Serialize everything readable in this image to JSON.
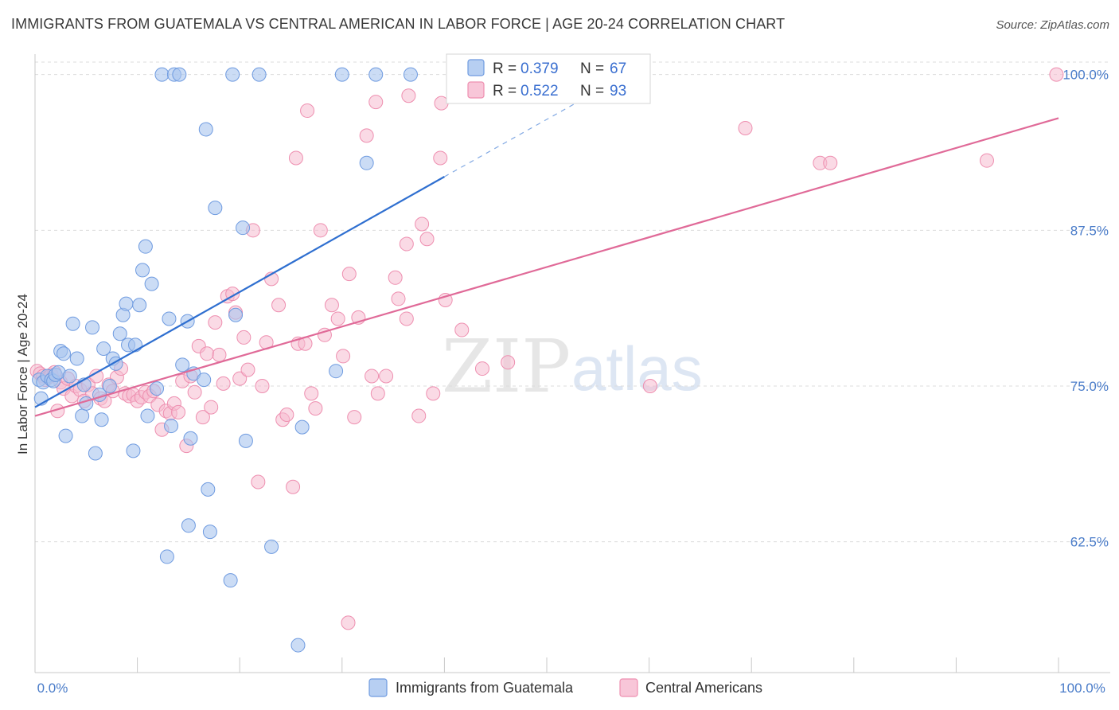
{
  "title": "IMMIGRANTS FROM GUATEMALA VS CENTRAL AMERICAN IN LABOR FORCE | AGE 20-24 CORRELATION CHART",
  "source": "Source: ZipAtlas.com",
  "watermark": {
    "zip": "ZIP",
    "atlas": "atlas"
  },
  "colors": {
    "blue_fill": "#a9c4ee",
    "blue_stroke": "#6f9be0",
    "blue_line": "#2f6fd0",
    "pink_fill": "#f6bcd0",
    "pink_stroke": "#ee8fb0",
    "pink_line": "#e06a98",
    "grid": "#dcdcdc",
    "tick_label": "#4a7cc9"
  },
  "legend": {
    "rows": [
      {
        "r_label": "R =",
        "r_value": "0.379",
        "n_label": "N =",
        "n_value": "67"
      },
      {
        "r_label": "R =",
        "r_value": "0.522",
        "n_label": "N =",
        "n_value": "93"
      }
    ]
  },
  "bottom_legend": [
    "Immigrants from Guatemala",
    "Central Americans"
  ],
  "chart_data": {
    "type": "scatter",
    "title": "IMMIGRANTS FROM GUATEMALA VS CENTRAL AMERICAN IN LABOR FORCE | AGE 20-24 CORRELATION CHART",
    "xlabel": "",
    "ylabel": "In Labor Force | Age 20-24",
    "xlim": [
      0,
      100
    ],
    "ylim": [
      52,
      101
    ],
    "x_tick_labels": [
      "0.0%",
      "100.0%"
    ],
    "y_ticks": [
      62.5,
      75.0,
      87.5,
      100.0
    ],
    "y_tick_labels": [
      "62.5%",
      "75.0%",
      "87.5%",
      "100.0%"
    ],
    "grid": true,
    "legend_position": "top-center",
    "series": [
      {
        "name": "Immigrants from Guatemala",
        "R": 0.379,
        "N": 67,
        "trend": {
          "x0": 0.0,
          "y0": 73.3,
          "x1": 40.0,
          "y1": 91.8,
          "dashed_to_x": 55.0,
          "dashed_to_y": 98.7
        },
        "points": [
          [
            0.4,
            75.5
          ],
          [
            0.6,
            74.0
          ],
          [
            0.8,
            75.3
          ],
          [
            1.2,
            75.8
          ],
          [
            1.6,
            75.5
          ],
          [
            1.8,
            75.4
          ],
          [
            2.0,
            75.9
          ],
          [
            2.3,
            76.1
          ],
          [
            2.5,
            77.8
          ],
          [
            2.8,
            77.6
          ],
          [
            3.0,
            71.0
          ],
          [
            3.4,
            75.8
          ],
          [
            3.7,
            80.0
          ],
          [
            4.1,
            77.2
          ],
          [
            4.6,
            72.6
          ],
          [
            4.8,
            75.1
          ],
          [
            5.0,
            73.6
          ],
          [
            5.6,
            79.7
          ],
          [
            5.9,
            69.6
          ],
          [
            6.3,
            74.3
          ],
          [
            6.5,
            72.3
          ],
          [
            6.7,
            78.0
          ],
          [
            7.3,
            75.0
          ],
          [
            7.6,
            77.2
          ],
          [
            7.9,
            76.8
          ],
          [
            8.3,
            79.2
          ],
          [
            8.6,
            80.7
          ],
          [
            8.9,
            81.6
          ],
          [
            9.1,
            78.3
          ],
          [
            9.6,
            69.8
          ],
          [
            9.8,
            78.3
          ],
          [
            10.2,
            81.5
          ],
          [
            10.5,
            84.3
          ],
          [
            10.8,
            86.2
          ],
          [
            11.0,
            72.6
          ],
          [
            11.4,
            83.2
          ],
          [
            11.9,
            74.8
          ],
          [
            12.4,
            100.0
          ],
          [
            12.9,
            61.3
          ],
          [
            13.1,
            80.4
          ],
          [
            13.3,
            71.8
          ],
          [
            13.6,
            100.0
          ],
          [
            14.1,
            100.0
          ],
          [
            14.4,
            76.7
          ],
          [
            14.9,
            80.2
          ],
          [
            15.0,
            63.8
          ],
          [
            15.2,
            70.8
          ],
          [
            15.5,
            76.0
          ],
          [
            16.5,
            75.5
          ],
          [
            16.7,
            95.6
          ],
          [
            16.9,
            66.7
          ],
          [
            17.1,
            63.3
          ],
          [
            17.6,
            89.3
          ],
          [
            19.1,
            59.4
          ],
          [
            19.3,
            100.0
          ],
          [
            19.6,
            80.7
          ],
          [
            20.3,
            87.7
          ],
          [
            20.6,
            70.6
          ],
          [
            21.9,
            100.0
          ],
          [
            23.1,
            62.1
          ],
          [
            25.7,
            54.2
          ],
          [
            26.1,
            71.7
          ],
          [
            29.4,
            76.2
          ],
          [
            30.0,
            100.0
          ],
          [
            32.4,
            92.9
          ],
          [
            33.3,
            100.0
          ],
          [
            36.7,
            100.0
          ]
        ]
      },
      {
        "name": "Central Americans",
        "R": 0.522,
        "N": 93,
        "trend": {
          "x0": 0.0,
          "y0": 72.6,
          "x1": 100.0,
          "y1": 96.5
        },
        "points": [
          [
            0.2,
            76.2
          ],
          [
            0.5,
            76.0
          ],
          [
            0.8,
            75.8
          ],
          [
            1.0,
            75.5
          ],
          [
            1.3,
            75.7
          ],
          [
            1.6,
            75.9
          ],
          [
            1.9,
            76.1
          ],
          [
            2.2,
            73.0
          ],
          [
            2.5,
            75.3
          ],
          [
            2.8,
            74.8
          ],
          [
            3.2,
            75.6
          ],
          [
            3.6,
            74.2
          ],
          [
            4.0,
            75.0
          ],
          [
            4.4,
            74.7
          ],
          [
            4.8,
            73.8
          ],
          [
            5.2,
            75.1
          ],
          [
            5.6,
            74.4
          ],
          [
            6.0,
            75.8
          ],
          [
            6.4,
            74.0
          ],
          [
            6.8,
            73.8
          ],
          [
            7.2,
            75.1
          ],
          [
            7.6,
            74.6
          ],
          [
            8.0,
            75.7
          ],
          [
            8.4,
            76.4
          ],
          [
            8.8,
            74.4
          ],
          [
            9.2,
            74.2
          ],
          [
            9.6,
            74.3
          ],
          [
            10.0,
            73.8
          ],
          [
            10.4,
            74.1
          ],
          [
            10.8,
            74.5
          ],
          [
            11.2,
            74.2
          ],
          [
            11.6,
            74.6
          ],
          [
            12.0,
            73.5
          ],
          [
            12.4,
            71.5
          ],
          [
            12.8,
            73.0
          ],
          [
            13.2,
            72.8
          ],
          [
            13.6,
            73.6
          ],
          [
            14.0,
            72.9
          ],
          [
            14.4,
            75.4
          ],
          [
            14.8,
            70.2
          ],
          [
            15.2,
            75.8
          ],
          [
            15.6,
            74.5
          ],
          [
            16.0,
            78.2
          ],
          [
            16.4,
            72.5
          ],
          [
            16.8,
            77.6
          ],
          [
            17.2,
            73.3
          ],
          [
            17.6,
            80.1
          ],
          [
            18.0,
            77.5
          ],
          [
            18.4,
            75.2
          ],
          [
            18.8,
            82.2
          ],
          [
            19.3,
            82.4
          ],
          [
            19.6,
            80.9
          ],
          [
            20.0,
            75.6
          ],
          [
            20.4,
            78.9
          ],
          [
            20.8,
            76.3
          ],
          [
            21.3,
            87.5
          ],
          [
            21.8,
            67.3
          ],
          [
            22.2,
            75.0
          ],
          [
            22.6,
            78.5
          ],
          [
            23.1,
            83.6
          ],
          [
            23.8,
            81.5
          ],
          [
            24.2,
            72.3
          ],
          [
            24.6,
            72.7
          ],
          [
            25.2,
            66.9
          ],
          [
            25.7,
            78.4
          ],
          [
            26.4,
            78.4
          ],
          [
            27.0,
            74.4
          ],
          [
            27.4,
            73.2
          ],
          [
            27.9,
            87.5
          ],
          [
            28.3,
            79.1
          ],
          [
            29.0,
            81.5
          ],
          [
            29.6,
            80.4
          ],
          [
            30.1,
            77.4
          ],
          [
            30.7,
            84.0
          ],
          [
            31.2,
            72.5
          ],
          [
            31.6,
            80.5
          ],
          [
            32.4,
            95.1
          ],
          [
            32.9,
            75.8
          ],
          [
            33.5,
            74.4
          ],
          [
            34.3,
            75.8
          ],
          [
            35.2,
            83.7
          ],
          [
            35.5,
            82.0
          ],
          [
            36.3,
            80.4
          ],
          [
            37.5,
            72.6
          ],
          [
            37.8,
            88.0
          ],
          [
            38.3,
            86.8
          ],
          [
            38.9,
            74.4
          ],
          [
            39.6,
            93.3
          ],
          [
            40.1,
            81.9
          ],
          [
            41.7,
            79.5
          ],
          [
            43.7,
            76.4
          ],
          [
            60.1,
            75.0
          ],
          [
            76.7,
            92.9
          ]
        ]
      }
    ],
    "extra_pink_points_visible": [
      [
        25.5,
        93.3
      ],
      [
        26.6,
        97.1
      ],
      [
        33.3,
        97.8
      ],
      [
        36.5,
        98.3
      ],
      [
        44.3,
        99.2
      ],
      [
        51.4,
        99.9
      ],
      [
        69.4,
        95.7
      ],
      [
        77.7,
        92.9
      ],
      [
        93.0,
        93.1
      ],
      [
        99.8,
        100.0
      ],
      [
        36.3,
        86.4
      ],
      [
        30.6,
        56.0
      ],
      [
        39.7,
        97.7
      ],
      [
        46.2,
        76.9
      ]
    ]
  }
}
